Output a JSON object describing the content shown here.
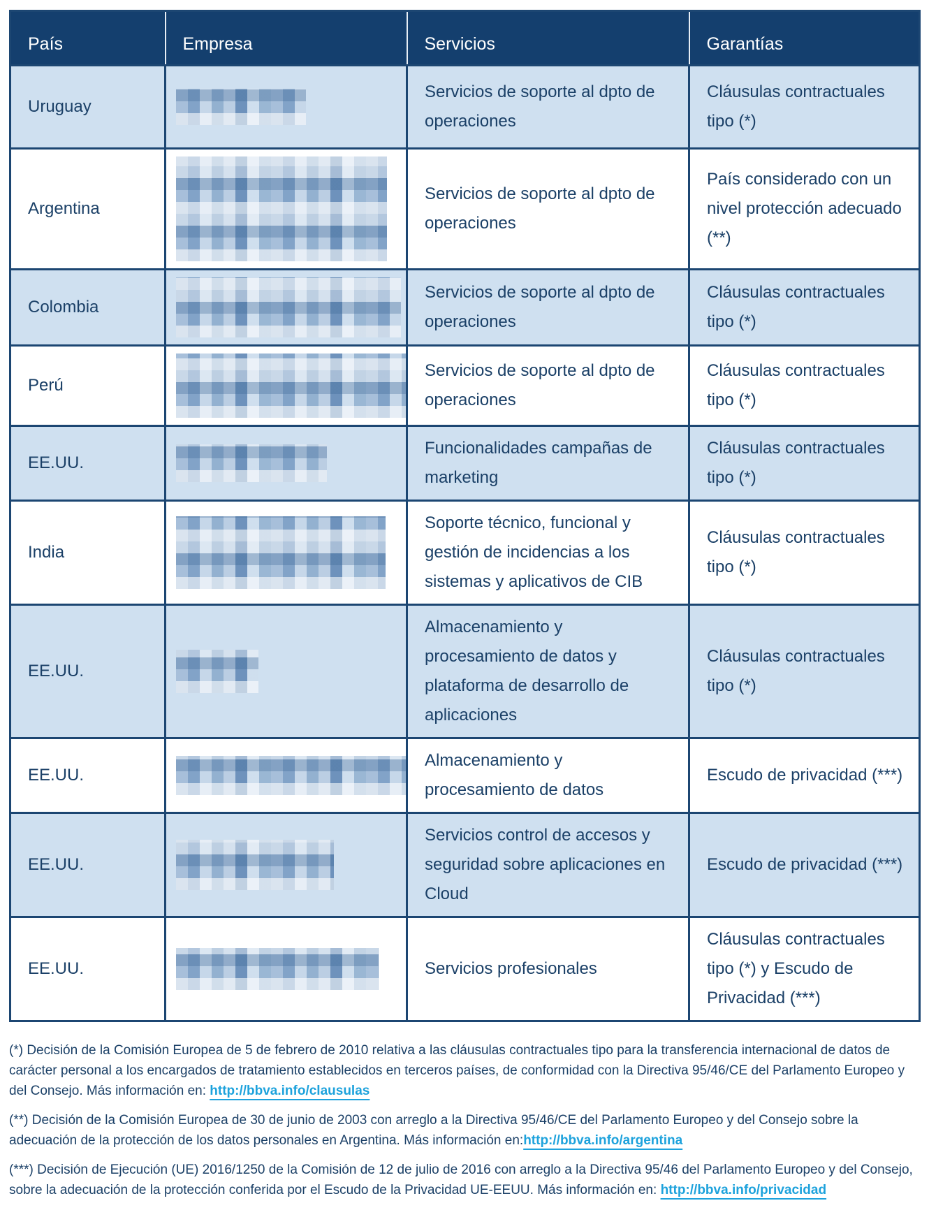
{
  "colors": {
    "header_bg": "#143F6E",
    "row_alt_bg": "#CFE0F0",
    "row_bg": "#FFFFFF",
    "border": "#1C4672",
    "text": "#1B4067",
    "header_text": "#FFFFFF",
    "link": "#1DA2DC"
  },
  "table": {
    "headers": {
      "pais": "País",
      "empresa": "Empresa",
      "servicios": "Servicios",
      "garantias": "Garantías"
    },
    "rows": [
      {
        "pais": "Uruguay",
        "empresa_redacted": true,
        "servicios": "Servicios de soporte al dpto de operaciones",
        "garantias": "Cláusulas contractuales tipo (*)"
      },
      {
        "pais": "Argentina",
        "empresa_redacted": true,
        "servicios": "Servicios de soporte al dpto de operaciones",
        "garantias": "País considerado con un nivel protección adecuado (**)"
      },
      {
        "pais": "Colombia",
        "empresa_redacted": true,
        "servicios": "Servicios de soporte al dpto de operaciones",
        "garantias": "Cláusulas contractuales tipo (*)"
      },
      {
        "pais": "Perú",
        "empresa_redacted": true,
        "servicios": "Servicios de soporte al dpto de operaciones",
        "garantias": "Cláusulas contractuales tipo (*)"
      },
      {
        "pais": "EE.UU.",
        "empresa_redacted": true,
        "servicios": "Funcionalidades campañas de marketing",
        "garantias": "Cláusulas contractuales tipo (*)"
      },
      {
        "pais": "India",
        "empresa_redacted": true,
        "servicios": "Soporte técnico, funcional y gestión de incidencias a los sistemas y aplicativos de CIB",
        "garantias": "Cláusulas contractuales tipo (*)"
      },
      {
        "pais": "EE.UU.",
        "empresa_redacted": true,
        "servicios": "Almacenamiento y procesamiento de datos y plataforma de desarrollo de aplicaciones",
        "garantias": "Cláusulas contractuales tipo (*)"
      },
      {
        "pais": "EE.UU.",
        "empresa_redacted": true,
        "servicios": "Almacenamiento y procesamiento de datos",
        "garantias": "Escudo de privacidad (***)"
      },
      {
        "pais": "EE.UU.",
        "empresa_redacted": true,
        "servicios": "Servicios control de accesos y seguridad sobre aplicaciones en Cloud",
        "garantias": "Escudo de privacidad (***)"
      },
      {
        "pais": "EE.UU.",
        "empresa_redacted": true,
        "servicios": "Servicios profesionales",
        "garantias": "Cláusulas contractuales tipo (*) y Escudo de Privacidad (***)"
      }
    ]
  },
  "footnotes": [
    {
      "text": "(*) Decisión de la Comisión Europea de 5 de febrero de 2010 relativa a las cláusulas contractuales tipo para la transferencia internacional de datos de carácter personal a los encargados de tratamiento establecidos en terceros países, de conformidad con la Directiva 95/46/CE del Parlamento Europeo y del Consejo. Más información en: ",
      "link": "http://bbva.info/clausulas"
    },
    {
      "text": "(**) Decisión de la Comisión Europea de 30 de junio de 2003 con arreglo a la Directiva 95/46/CE del Parlamento Europeo y del Consejo sobre la adecuación de la protección de los datos personales en Argentina. Más información en:",
      "link": "http://bbva.info/argentina"
    },
    {
      "text": "(***) Decisión de Ejecución (UE) 2016/1250 de la Comisión de 12 de julio de 2016 con arreglo a la Directiva 95/46 del Parlamento Europeo y del Consejo, sobre la adecuación de la protección conferida por el Escudo de la Privacidad UE-EEUU. Más información en: ",
      "link": "http://bbva.info/privacidad"
    }
  ]
}
